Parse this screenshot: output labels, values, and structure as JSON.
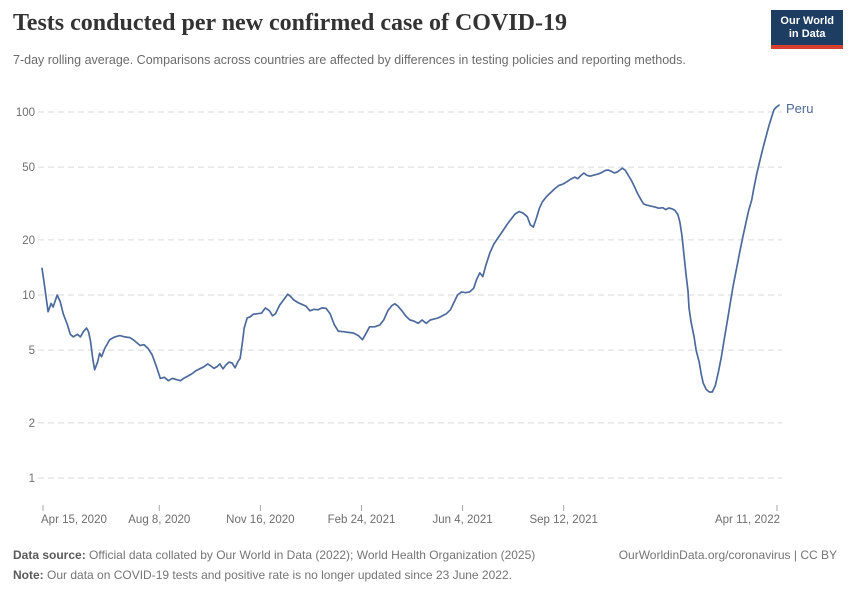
{
  "header": {
    "title": "Tests conducted per new confirmed case of COVID-19",
    "subtitle": "7-day rolling average. Comparisons across countries are affected by differences in testing policies and reporting methods.",
    "logo": {
      "line1": "Our World",
      "line2": "in Data",
      "bg": "#1d3d63",
      "stripe": "#d63e32"
    }
  },
  "footer": {
    "source_label": "Data source:",
    "source_text": " Official data collated by Our World in Data (2022); World Health Organization (2025)",
    "link_text": "OurWorldinData.org/coronavirus | CC BY",
    "note_label": "Note:",
    "note_text": " Our data on COVID-19 tests and positive rate is no longer updated since 23 June 2022."
  },
  "chart_data": {
    "type": "line",
    "title": "Tests conducted per new confirmed case of COVID-19",
    "y_scale": "log",
    "grid": "horizontal-dashed",
    "colors": {
      "line": "#4C6A9C",
      "grid": "#dadada",
      "tick_text": "#6e6e6e",
      "tick_mark": "#a8a8a8"
    },
    "y_axis": {
      "ticks": [
        {
          "v": 1,
          "label": "1"
        },
        {
          "v": 2,
          "label": "2"
        },
        {
          "v": 5,
          "label": "5"
        },
        {
          "v": 10,
          "label": "10"
        },
        {
          "v": 20,
          "label": "20"
        },
        {
          "v": 50,
          "label": "50"
        },
        {
          "v": 100,
          "label": "100"
        }
      ]
    },
    "x_axis": {
      "ticks": [
        {
          "date": "2020-04-15",
          "label": "Apr 15, 2020"
        },
        {
          "date": "2020-08-08",
          "label": "Aug 8, 2020"
        },
        {
          "date": "2020-11-16",
          "label": "Nov 16, 2020"
        },
        {
          "date": "2021-02-24",
          "label": "Feb 24, 2021"
        },
        {
          "date": "2021-06-04",
          "label": "Jun 4, 2021"
        },
        {
          "date": "2021-09-12",
          "label": "Sep 12, 2021"
        },
        {
          "date": "2022-04-11",
          "label": "Apr 11, 2022"
        }
      ]
    },
    "series": [
      {
        "name": "Peru",
        "color": "#4C6A9C",
        "points": [
          [
            "2020-04-14",
            14.0
          ],
          [
            "2020-04-16",
            11.8
          ],
          [
            "2020-04-18",
            9.8
          ],
          [
            "2020-04-20",
            8.1
          ],
          [
            "2020-04-23",
            9.0
          ],
          [
            "2020-04-25",
            8.6
          ],
          [
            "2020-04-29",
            10.0
          ],
          [
            "2020-05-02",
            9.2
          ],
          [
            "2020-05-05",
            7.9
          ],
          [
            "2020-05-09",
            6.9
          ],
          [
            "2020-05-12",
            6.1
          ],
          [
            "2020-05-15",
            5.9
          ],
          [
            "2020-05-19",
            6.1
          ],
          [
            "2020-05-22",
            5.9
          ],
          [
            "2020-05-25",
            6.3
          ],
          [
            "2020-05-28",
            6.6
          ],
          [
            "2020-05-30",
            6.3
          ],
          [
            "2020-06-01",
            5.6
          ],
          [
            "2020-06-03",
            4.6
          ],
          [
            "2020-06-05",
            3.9
          ],
          [
            "2020-06-08",
            4.3
          ],
          [
            "2020-06-10",
            4.8
          ],
          [
            "2020-06-12",
            4.6
          ],
          [
            "2020-06-15",
            5.1
          ],
          [
            "2020-06-20",
            5.7
          ],
          [
            "2020-06-25",
            5.9
          ],
          [
            "2020-06-30",
            6.0
          ],
          [
            "2020-07-05",
            5.9
          ],
          [
            "2020-07-10",
            5.85
          ],
          [
            "2020-07-15",
            5.6
          ],
          [
            "2020-07-20",
            5.3
          ],
          [
            "2020-07-24",
            5.35
          ],
          [
            "2020-07-28",
            5.1
          ],
          [
            "2020-08-01",
            4.7
          ],
          [
            "2020-08-05",
            4.1
          ],
          [
            "2020-08-09",
            3.5
          ],
          [
            "2020-08-13",
            3.55
          ],
          [
            "2020-08-17",
            3.4
          ],
          [
            "2020-08-21",
            3.5
          ],
          [
            "2020-08-25",
            3.45
          ],
          [
            "2020-08-29",
            3.4
          ],
          [
            "2020-09-01",
            3.5
          ],
          [
            "2020-09-05",
            3.6
          ],
          [
            "2020-09-09",
            3.7
          ],
          [
            "2020-09-13",
            3.85
          ],
          [
            "2020-09-17",
            3.95
          ],
          [
            "2020-09-21",
            4.05
          ],
          [
            "2020-09-25",
            4.2
          ],
          [
            "2020-09-28",
            4.1
          ],
          [
            "2020-10-01",
            3.97
          ],
          [
            "2020-10-04",
            4.05
          ],
          [
            "2020-10-07",
            4.2
          ],
          [
            "2020-10-10",
            3.95
          ],
          [
            "2020-10-13",
            4.15
          ],
          [
            "2020-10-16",
            4.3
          ],
          [
            "2020-10-19",
            4.25
          ],
          [
            "2020-10-22",
            4.0
          ],
          [
            "2020-10-25",
            4.35
          ],
          [
            "2020-10-27",
            4.5
          ],
          [
            "2020-10-29",
            5.4
          ],
          [
            "2020-10-31",
            6.6
          ],
          [
            "2020-11-03",
            7.5
          ],
          [
            "2020-11-06",
            7.6
          ],
          [
            "2020-11-09",
            7.85
          ],
          [
            "2020-11-13",
            7.9
          ],
          [
            "2020-11-17",
            7.95
          ],
          [
            "2020-11-21",
            8.5
          ],
          [
            "2020-11-25",
            8.2
          ],
          [
            "2020-11-28",
            7.7
          ],
          [
            "2020-12-01",
            7.9
          ],
          [
            "2020-12-05",
            8.8
          ],
          [
            "2020-12-09",
            9.4
          ],
          [
            "2020-12-13",
            10.1
          ],
          [
            "2020-12-16",
            9.8
          ],
          [
            "2020-12-19",
            9.4
          ],
          [
            "2020-12-23",
            9.1
          ],
          [
            "2020-12-27",
            8.9
          ],
          [
            "2020-12-31",
            8.7
          ],
          [
            "2021-01-04",
            8.2
          ],
          [
            "2021-01-08",
            8.35
          ],
          [
            "2021-01-12",
            8.3
          ],
          [
            "2021-01-16",
            8.5
          ],
          [
            "2021-01-20",
            8.45
          ],
          [
            "2021-01-24",
            7.9
          ],
          [
            "2021-01-28",
            6.9
          ],
          [
            "2021-02-01",
            6.35
          ],
          [
            "2021-02-06",
            6.3
          ],
          [
            "2021-02-11",
            6.25
          ],
          [
            "2021-02-16",
            6.2
          ],
          [
            "2021-02-21",
            6.0
          ],
          [
            "2021-02-25",
            5.7
          ],
          [
            "2021-02-28",
            6.1
          ],
          [
            "2021-03-04",
            6.7
          ],
          [
            "2021-03-09",
            6.7
          ],
          [
            "2021-03-14",
            6.85
          ],
          [
            "2021-03-18",
            7.3
          ],
          [
            "2021-03-22",
            8.2
          ],
          [
            "2021-03-26",
            8.75
          ],
          [
            "2021-03-29",
            8.95
          ],
          [
            "2021-04-01",
            8.7
          ],
          [
            "2021-04-05",
            8.2
          ],
          [
            "2021-04-09",
            7.65
          ],
          [
            "2021-04-13",
            7.3
          ],
          [
            "2021-04-17",
            7.2
          ],
          [
            "2021-04-21",
            7.0
          ],
          [
            "2021-04-25",
            7.3
          ],
          [
            "2021-04-29",
            7.0
          ],
          [
            "2021-05-03",
            7.3
          ],
          [
            "2021-05-07",
            7.4
          ],
          [
            "2021-05-11",
            7.5
          ],
          [
            "2021-05-15",
            7.7
          ],
          [
            "2021-05-19",
            7.9
          ],
          [
            "2021-05-23",
            8.3
          ],
          [
            "2021-05-26",
            9.0
          ],
          [
            "2021-05-30",
            10.0
          ],
          [
            "2021-06-03",
            10.4
          ],
          [
            "2021-06-07",
            10.3
          ],
          [
            "2021-06-11",
            10.4
          ],
          [
            "2021-06-15",
            10.9
          ],
          [
            "2021-06-18",
            12.2
          ],
          [
            "2021-06-21",
            13.2
          ],
          [
            "2021-06-24",
            12.6
          ],
          [
            "2021-06-27",
            14.5
          ],
          [
            "2021-07-01",
            17.0
          ],
          [
            "2021-07-05",
            19.0
          ],
          [
            "2021-07-09",
            20.5
          ],
          [
            "2021-07-14",
            22.5
          ],
          [
            "2021-07-18",
            24.3
          ],
          [
            "2021-07-22",
            26.0
          ],
          [
            "2021-07-26",
            27.7
          ],
          [
            "2021-07-30",
            28.6
          ],
          [
            "2021-08-03",
            28.0
          ],
          [
            "2021-08-07",
            26.8
          ],
          [
            "2021-08-10",
            24.2
          ],
          [
            "2021-08-13",
            23.5
          ],
          [
            "2021-08-16",
            26.3
          ],
          [
            "2021-08-19",
            29.8
          ],
          [
            "2021-08-22",
            32.3
          ],
          [
            "2021-08-26",
            34.5
          ],
          [
            "2021-08-30",
            36.2
          ],
          [
            "2021-09-03",
            38.0
          ],
          [
            "2021-09-07",
            39.6
          ],
          [
            "2021-09-11",
            40.3
          ],
          [
            "2021-09-15",
            41.5
          ],
          [
            "2021-09-19",
            43.0
          ],
          [
            "2021-09-23",
            44.1
          ],
          [
            "2021-09-26",
            43.2
          ],
          [
            "2021-09-29",
            45.0
          ],
          [
            "2021-10-02",
            46.4
          ],
          [
            "2021-10-05",
            45.1
          ],
          [
            "2021-10-08",
            44.6
          ],
          [
            "2021-10-12",
            45.2
          ],
          [
            "2021-10-16",
            45.8
          ],
          [
            "2021-10-20",
            46.8
          ],
          [
            "2021-10-23",
            47.9
          ],
          [
            "2021-10-26",
            48.2
          ],
          [
            "2021-10-29",
            47.4
          ],
          [
            "2021-11-01",
            46.5
          ],
          [
            "2021-11-04",
            47.0
          ],
          [
            "2021-11-06",
            47.9
          ],
          [
            "2021-11-09",
            49.3
          ],
          [
            "2021-11-12",
            48.0
          ],
          [
            "2021-11-15",
            45.0
          ],
          [
            "2021-11-18",
            42.3
          ],
          [
            "2021-11-21",
            39.1
          ],
          [
            "2021-11-24",
            35.9
          ],
          [
            "2021-11-27",
            33.5
          ],
          [
            "2021-11-30",
            31.5
          ],
          [
            "2021-12-03",
            31.0
          ],
          [
            "2021-12-07",
            30.6
          ],
          [
            "2021-12-11",
            30.3
          ],
          [
            "2021-12-15",
            29.8
          ],
          [
            "2021-12-19",
            30.0
          ],
          [
            "2021-12-22",
            29.3
          ],
          [
            "2021-12-25",
            29.9
          ],
          [
            "2021-12-28",
            29.6
          ],
          [
            "2021-12-31",
            29.0
          ],
          [
            "2022-01-03",
            27.5
          ],
          [
            "2022-01-05",
            25.0
          ],
          [
            "2022-01-07",
            21.0
          ],
          [
            "2022-01-09",
            16.5
          ],
          [
            "2022-01-11",
            13.0
          ],
          [
            "2022-01-13",
            10.5
          ],
          [
            "2022-01-14",
            8.5
          ],
          [
            "2022-01-16",
            7.1
          ],
          [
            "2022-01-19",
            5.9
          ],
          [
            "2022-01-21",
            5.0
          ],
          [
            "2022-01-24",
            4.3
          ],
          [
            "2022-01-26",
            3.7
          ],
          [
            "2022-01-28",
            3.3
          ],
          [
            "2022-01-31",
            3.05
          ],
          [
            "2022-02-03",
            2.95
          ],
          [
            "2022-02-06",
            2.95
          ],
          [
            "2022-02-09",
            3.2
          ],
          [
            "2022-02-12",
            3.8
          ],
          [
            "2022-02-15",
            4.6
          ],
          [
            "2022-02-18",
            5.8
          ],
          [
            "2022-02-21",
            7.3
          ],
          [
            "2022-02-24",
            9.2
          ],
          [
            "2022-02-27",
            11.5
          ],
          [
            "2022-03-02",
            14.0
          ],
          [
            "2022-03-05",
            17.0
          ],
          [
            "2022-03-08",
            20.5
          ],
          [
            "2022-03-11",
            24.5
          ],
          [
            "2022-03-14",
            29.0
          ],
          [
            "2022-03-17",
            33.0
          ],
          [
            "2022-03-19",
            38.0
          ],
          [
            "2022-03-22",
            46.0
          ],
          [
            "2022-03-25",
            54.0
          ],
          [
            "2022-03-28",
            63.0
          ],
          [
            "2022-03-31",
            73.0
          ],
          [
            "2022-04-03",
            84.0
          ],
          [
            "2022-04-06",
            95.0
          ],
          [
            "2022-04-08",
            103.0
          ],
          [
            "2022-04-10",
            106.0
          ],
          [
            "2022-04-13",
            109.0
          ]
        ]
      }
    ]
  }
}
